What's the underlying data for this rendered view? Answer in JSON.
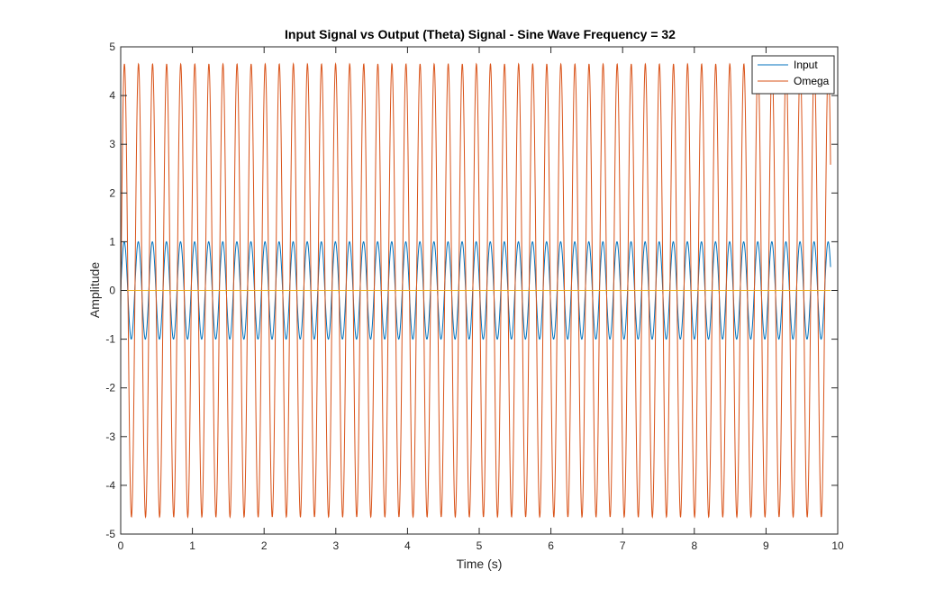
{
  "chart_data": {
    "type": "line",
    "title": "Input Signal vs Output (Theta) Signal - Sine Wave Frequency = 32",
    "xlabel": "Time (s)",
    "ylabel": "Amplitude",
    "xlim": [
      0,
      10
    ],
    "ylim": [
      -5,
      5
    ],
    "xticks": [
      0,
      1,
      2,
      3,
      4,
      5,
      6,
      7,
      8,
      9,
      10
    ],
    "yticks": [
      -5,
      -4,
      -3,
      -2,
      -1,
      0,
      1,
      2,
      3,
      4,
      5
    ],
    "grid": false,
    "legend_position": "top-right",
    "x_end": 9.9,
    "series": [
      {
        "name": "Input",
        "color": "#0072BD",
        "function": "sine",
        "frequency_rad_per_s": 32,
        "amplitude": 1,
        "phase_deg": 0
      },
      {
        "name": "Omega",
        "color": "#D95319",
        "function": "sine",
        "frequency_rad_per_s": 32,
        "amplitude": 4.65,
        "phase_deg": -5
      },
      {
        "name": "",
        "color": "#EDB120",
        "function": "constant",
        "value": 0
      }
    ]
  }
}
